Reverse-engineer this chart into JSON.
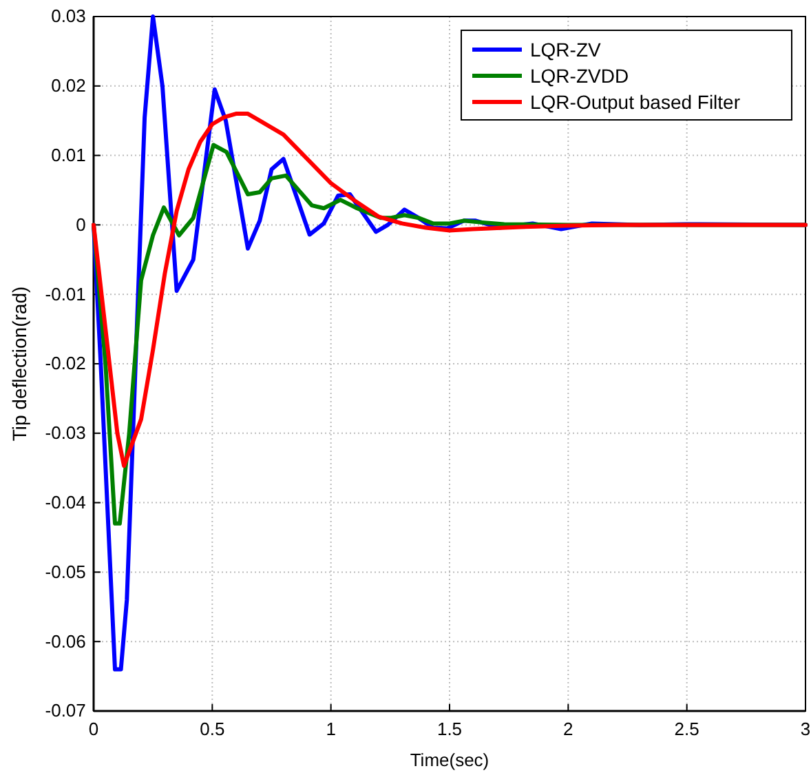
{
  "chart_data": {
    "type": "line",
    "xlabel": "Time(sec)",
    "ylabel": "Tip deflection(rad)",
    "xlim": [
      0,
      3
    ],
    "ylim": [
      -0.07,
      0.03
    ],
    "xticks": [
      0,
      0.5,
      1,
      1.5,
      2,
      2.5,
      3
    ],
    "yticks": [
      -0.07,
      -0.06,
      -0.05,
      -0.04,
      -0.03,
      -0.02,
      -0.01,
      0,
      0.01,
      0.02,
      0.03
    ],
    "grid": true,
    "legend": "top right",
    "line_style": "solid",
    "marker": "none",
    "series": [
      {
        "name": "LQR-ZV",
        "color": "#0000ff",
        "x": [
          0,
          0.03,
          0.09,
          0.115,
          0.14,
          0.215,
          0.25,
          0.29,
          0.35,
          0.42,
          0.51,
          0.557,
          0.65,
          0.7,
          0.75,
          0.8,
          0.91,
          0.97,
          1.03,
          1.08,
          1.19,
          1.24,
          1.31,
          1.36,
          1.43,
          1.49,
          1.56,
          1.61,
          1.71,
          1.85,
          1.97,
          2.1,
          2.3,
          2.5,
          3
        ],
        "values": [
          0,
          -0.02,
          -0.064,
          -0.064,
          -0.054,
          0.0155,
          0.03,
          0.02,
          -0.0095,
          -0.005,
          0.0195,
          0.015,
          -0.0034,
          0.0006,
          0.008,
          0.0095,
          -0.0014,
          0.0002,
          0.0042,
          0.0044,
          -0.001,
          0,
          0.0022,
          0.0012,
          -0.0004,
          -0.0005,
          0.0006,
          0.0006,
          -0.0004,
          0.0002,
          -0.0006,
          0.0002,
          0,
          0.0001,
          0
        ]
      },
      {
        "name": "LQR-ZVDD",
        "color": "#008000",
        "x": [
          0,
          0.05,
          0.09,
          0.11,
          0.15,
          0.2,
          0.25,
          0.296,
          0.36,
          0.42,
          0.505,
          0.56,
          0.65,
          0.7,
          0.75,
          0.81,
          0.92,
          0.97,
          1.04,
          1.11,
          1.21,
          1.25,
          1.31,
          1.37,
          1.43,
          1.5,
          1.56,
          1.62,
          1.73,
          2,
          3
        ],
        "values": [
          0,
          -0.02,
          -0.043,
          -0.043,
          -0.03,
          -0.008,
          -0.0015,
          0.0025,
          -0.0015,
          0.001,
          0.0115,
          0.0105,
          0.0044,
          0.0047,
          0.0067,
          0.0071,
          0.0028,
          0.0024,
          0.0036,
          0.0024,
          0.001,
          0.001,
          0.0014,
          0.001,
          0.0002,
          0.0002,
          0.0006,
          0.0004,
          0.0001,
          0,
          0
        ]
      },
      {
        "name": "LQR-Output based Filter",
        "color": "#ff0000",
        "x": [
          0,
          0.05,
          0.1,
          0.128,
          0.2,
          0.25,
          0.3,
          0.35,
          0.4,
          0.45,
          0.5,
          0.55,
          0.6,
          0.65,
          0.7,
          0.8,
          0.9,
          1,
          1.1,
          1.2,
          1.3,
          1.4,
          1.5,
          1.6,
          1.8,
          2,
          2.2,
          3
        ],
        "values": [
          0,
          -0.015,
          -0.03,
          -0.0347,
          -0.028,
          -0.018,
          -0.007,
          0.002,
          0.008,
          0.012,
          0.0145,
          0.0155,
          0.016,
          0.016,
          0.015,
          0.013,
          0.0095,
          0.006,
          0.0035,
          0.0012,
          0.0002,
          -0.0004,
          -0.0008,
          -0.0006,
          -0.0003,
          -0.0001,
          0,
          0
        ]
      }
    ]
  }
}
